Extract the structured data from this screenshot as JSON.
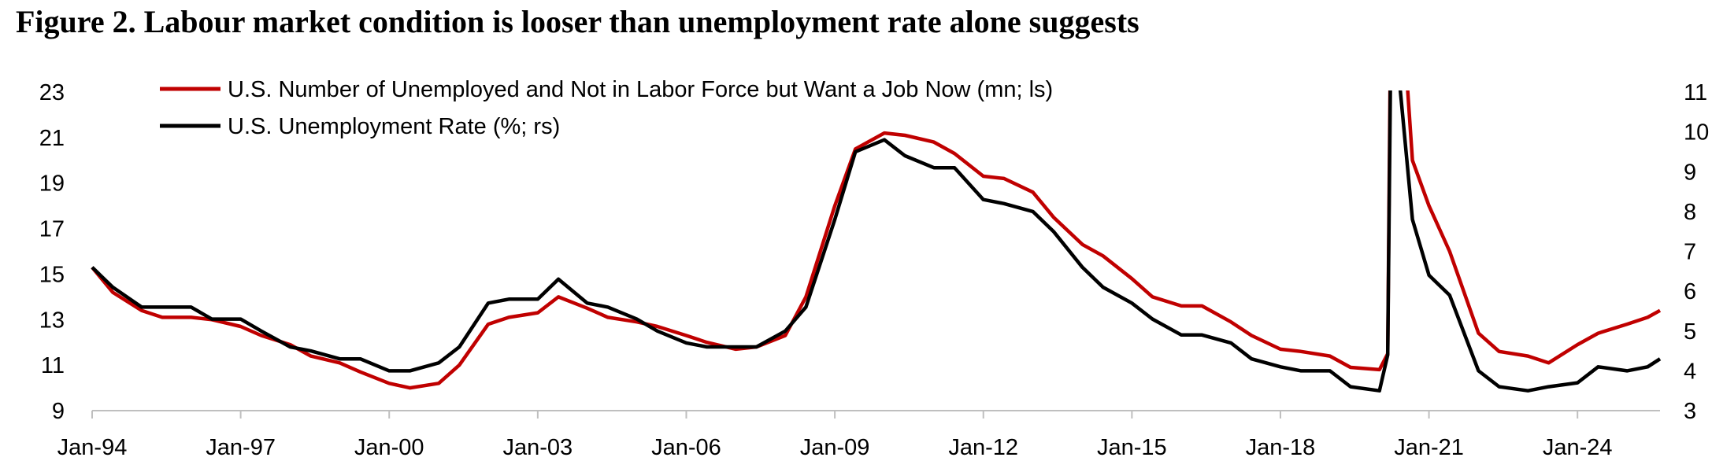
{
  "title": "Figure 2. Labour market condition is looser than unemployment rate alone suggests",
  "colors": {
    "series1": "#c00000",
    "series2": "#000000",
    "axis": "#bfbfbf"
  },
  "chart_data": {
    "type": "line",
    "title": "Figure 2. Labour market condition is looser than unemployment rate alone suggests",
    "x_range": [
      "1994-01",
      "2025-09"
    ],
    "x_tick_labels": [
      "Jan-94",
      "Jan-97",
      "Jan-00",
      "Jan-03",
      "Jan-06",
      "Jan-09",
      "Jan-12",
      "Jan-15",
      "Jan-18",
      "Jan-21",
      "Jan-24"
    ],
    "y_left": {
      "range": [
        9,
        23
      ],
      "ticks": [
        9,
        11,
        13,
        15,
        17,
        19,
        21,
        23
      ]
    },
    "y_right": {
      "range": [
        3,
        11
      ],
      "ticks": [
        3,
        4,
        5,
        6,
        7,
        8,
        9,
        10,
        11
      ]
    },
    "grid": false,
    "legend_position": "top-left",
    "series": [
      {
        "name": "U.S. Number of Unemployed and Not in Labor Force but Want a Job Now (mn; ls)",
        "axis": "left",
        "color": "#c00000",
        "points": [
          [
            "1994-01",
            15.3
          ],
          [
            "1994-06",
            14.2
          ],
          [
            "1995-01",
            13.4
          ],
          [
            "1995-06",
            13.1
          ],
          [
            "1996-01",
            13.1
          ],
          [
            "1996-06",
            13.0
          ],
          [
            "1997-01",
            12.7
          ],
          [
            "1997-06",
            12.3
          ],
          [
            "1998-01",
            11.9
          ],
          [
            "1998-06",
            11.4
          ],
          [
            "1999-01",
            11.1
          ],
          [
            "1999-06",
            10.7
          ],
          [
            "2000-01",
            10.2
          ],
          [
            "2000-06",
            10.0
          ],
          [
            "2001-01",
            10.2
          ],
          [
            "2001-06",
            11.0
          ],
          [
            "2002-01",
            12.8
          ],
          [
            "2002-06",
            13.1
          ],
          [
            "2003-01",
            13.3
          ],
          [
            "2003-06",
            14.0
          ],
          [
            "2004-01",
            13.5
          ],
          [
            "2004-06",
            13.1
          ],
          [
            "2005-01",
            12.9
          ],
          [
            "2005-06",
            12.7
          ],
          [
            "2006-01",
            12.3
          ],
          [
            "2006-06",
            12.0
          ],
          [
            "2007-01",
            11.7
          ],
          [
            "2007-06",
            11.8
          ],
          [
            "2008-01",
            12.3
          ],
          [
            "2008-06",
            14.0
          ],
          [
            "2009-01",
            18.0
          ],
          [
            "2009-06",
            20.5
          ],
          [
            "2010-01",
            21.2
          ],
          [
            "2010-06",
            21.1
          ],
          [
            "2011-01",
            20.8
          ],
          [
            "2011-06",
            20.3
          ],
          [
            "2012-01",
            19.3
          ],
          [
            "2012-06",
            19.2
          ],
          [
            "2013-01",
            18.6
          ],
          [
            "2013-06",
            17.5
          ],
          [
            "2014-01",
            16.3
          ],
          [
            "2014-06",
            15.8
          ],
          [
            "2015-01",
            14.8
          ],
          [
            "2015-06",
            14.0
          ],
          [
            "2016-01",
            13.6
          ],
          [
            "2016-06",
            13.6
          ],
          [
            "2017-01",
            12.9
          ],
          [
            "2017-06",
            12.3
          ],
          [
            "2018-01",
            11.7
          ],
          [
            "2018-06",
            11.6
          ],
          [
            "2019-01",
            11.4
          ],
          [
            "2019-06",
            10.9
          ],
          [
            "2020-01",
            10.8
          ],
          [
            "2020-03",
            11.5
          ],
          [
            "2020-04",
            32.0
          ],
          [
            "2020-06",
            28.0
          ],
          [
            "2020-09",
            20.0
          ],
          [
            "2021-01",
            18.0
          ],
          [
            "2021-06",
            16.0
          ],
          [
            "2022-01",
            12.4
          ],
          [
            "2022-06",
            11.6
          ],
          [
            "2023-01",
            11.4
          ],
          [
            "2023-06",
            11.1
          ],
          [
            "2024-01",
            11.9
          ],
          [
            "2024-06",
            12.4
          ],
          [
            "2025-01",
            12.8
          ],
          [
            "2025-06",
            13.1
          ],
          [
            "2025-09",
            13.4
          ]
        ]
      },
      {
        "name": "U.S. Unemployment Rate (%; rs)",
        "axis": "right",
        "color": "#000000",
        "points": [
          [
            "1994-01",
            6.6
          ],
          [
            "1994-06",
            6.1
          ],
          [
            "1995-01",
            5.6
          ],
          [
            "1995-06",
            5.6
          ],
          [
            "1996-01",
            5.6
          ],
          [
            "1996-06",
            5.3
          ],
          [
            "1997-01",
            5.3
          ],
          [
            "1997-06",
            5.0
          ],
          [
            "1998-01",
            4.6
          ],
          [
            "1998-06",
            4.5
          ],
          [
            "1999-01",
            4.3
          ],
          [
            "1999-06",
            4.3
          ],
          [
            "2000-01",
            4.0
          ],
          [
            "2000-06",
            4.0
          ],
          [
            "2001-01",
            4.2
          ],
          [
            "2001-06",
            4.6
          ],
          [
            "2002-01",
            5.7
          ],
          [
            "2002-06",
            5.8
          ],
          [
            "2003-01",
            5.8
          ],
          [
            "2003-06",
            6.3
          ],
          [
            "2004-01",
            5.7
          ],
          [
            "2004-06",
            5.6
          ],
          [
            "2005-01",
            5.3
          ],
          [
            "2005-06",
            5.0
          ],
          [
            "2006-01",
            4.7
          ],
          [
            "2006-06",
            4.6
          ],
          [
            "2007-01",
            4.6
          ],
          [
            "2007-06",
            4.6
          ],
          [
            "2008-01",
            5.0
          ],
          [
            "2008-06",
            5.6
          ],
          [
            "2009-01",
            7.8
          ],
          [
            "2009-06",
            9.5
          ],
          [
            "2010-01",
            9.8
          ],
          [
            "2010-06",
            9.4
          ],
          [
            "2011-01",
            9.1
          ],
          [
            "2011-06",
            9.1
          ],
          [
            "2012-01",
            8.3
          ],
          [
            "2012-06",
            8.2
          ],
          [
            "2013-01",
            8.0
          ],
          [
            "2013-06",
            7.5
          ],
          [
            "2014-01",
            6.6
          ],
          [
            "2014-06",
            6.1
          ],
          [
            "2015-01",
            5.7
          ],
          [
            "2015-06",
            5.3
          ],
          [
            "2016-01",
            4.9
          ],
          [
            "2016-06",
            4.9
          ],
          [
            "2017-01",
            4.7
          ],
          [
            "2017-06",
            4.3
          ],
          [
            "2018-01",
            4.1
          ],
          [
            "2018-06",
            4.0
          ],
          [
            "2019-01",
            4.0
          ],
          [
            "2019-06",
            3.6
          ],
          [
            "2020-01",
            3.5
          ],
          [
            "2020-03",
            4.4
          ],
          [
            "2020-04",
            14.7
          ],
          [
            "2020-06",
            11.1
          ],
          [
            "2020-09",
            7.8
          ],
          [
            "2021-01",
            6.4
          ],
          [
            "2021-06",
            5.9
          ],
          [
            "2022-01",
            4.0
          ],
          [
            "2022-06",
            3.6
          ],
          [
            "2023-01",
            3.5
          ],
          [
            "2023-06",
            3.6
          ],
          [
            "2024-01",
            3.7
          ],
          [
            "2024-06",
            4.1
          ],
          [
            "2025-01",
            4.0
          ],
          [
            "2025-06",
            4.1
          ],
          [
            "2025-09",
            4.3
          ]
        ]
      }
    ]
  }
}
